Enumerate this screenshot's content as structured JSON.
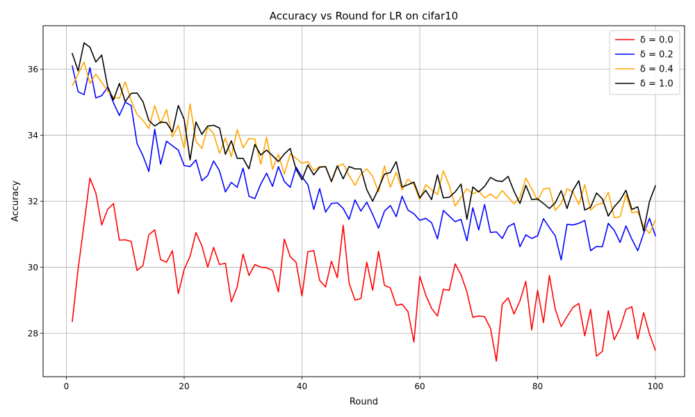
{
  "chart_data": {
    "type": "line",
    "title": "Accuracy vs Round for LR on cifar10",
    "xlabel": "Round",
    "ylabel": "Accuracy",
    "xlim": [
      -3.95,
      104.95
    ],
    "ylim": [
      26.68,
      37.32
    ],
    "xticks": [
      0,
      20,
      40,
      60,
      80,
      100
    ],
    "yticks": [
      28,
      30,
      32,
      34,
      36
    ],
    "grid": true,
    "legend_position": "top-right",
    "x": [
      1,
      2,
      3,
      4,
      5,
      6,
      7,
      8,
      9,
      10,
      11,
      12,
      13,
      14,
      15,
      16,
      17,
      18,
      19,
      20,
      21,
      22,
      23,
      24,
      25,
      26,
      27,
      28,
      29,
      30,
      31,
      32,
      33,
      34,
      35,
      36,
      37,
      38,
      39,
      40,
      41,
      42,
      43,
      44,
      45,
      46,
      47,
      48,
      49,
      50,
      51,
      52,
      53,
      54,
      55,
      56,
      57,
      58,
      59,
      60,
      61,
      62,
      63,
      64,
      65,
      66,
      67,
      68,
      69,
      70,
      71,
      72,
      73,
      74,
      75,
      76,
      77,
      78,
      79,
      80,
      81,
      82,
      83,
      84,
      85,
      86,
      87,
      88,
      89,
      90,
      91,
      92,
      93,
      94,
      95,
      96,
      97,
      98,
      99,
      100
    ],
    "series": [
      {
        "name": "δ = 0.0",
        "color": "#ff0000",
        "values": [
          28.35,
          29.95,
          31.3,
          32.7,
          32.25,
          31.28,
          31.75,
          31.93,
          30.82,
          30.83,
          30.78,
          29.9,
          30.05,
          30.98,
          31.13,
          30.23,
          30.15,
          30.5,
          29.2,
          29.93,
          30.33,
          31.05,
          30.65,
          30.0,
          30.6,
          30.08,
          30.12,
          28.95,
          29.4,
          30.4,
          29.75,
          30.08,
          30.0,
          29.98,
          29.9,
          29.25,
          30.85,
          30.32,
          30.15,
          29.13,
          30.47,
          30.5,
          29.6,
          29.4,
          30.18,
          29.68,
          31.27,
          29.52,
          29.0,
          29.05,
          30.15,
          29.3,
          30.48,
          29.45,
          29.37,
          28.84,
          28.88,
          28.65,
          27.73,
          29.72,
          29.16,
          28.75,
          28.52,
          29.33,
          29.3,
          30.1,
          29.77,
          29.25,
          28.48,
          28.52,
          28.5,
          28.15,
          27.15,
          28.88,
          29.07,
          28.58,
          28.98,
          29.57,
          28.1,
          29.3,
          28.32,
          29.75,
          28.72,
          28.2,
          28.5,
          28.78,
          28.9,
          27.92,
          28.72,
          27.3,
          27.45,
          28.68,
          27.8,
          28.15,
          28.72,
          28.8,
          27.82,
          28.62,
          27.97,
          27.48
        ]
      },
      {
        "name": "δ = 0.2",
        "color": "#0000ff",
        "values": [
          36.1,
          35.32,
          35.23,
          36.05,
          35.13,
          35.2,
          35.45,
          34.98,
          34.6,
          35.0,
          34.9,
          33.75,
          33.38,
          32.9,
          34.18,
          33.12,
          33.82,
          33.68,
          33.55,
          33.08,
          33.05,
          33.25,
          32.62,
          32.78,
          33.22,
          32.92,
          32.28,
          32.57,
          32.42,
          33.0,
          32.15,
          32.08,
          32.52,
          32.85,
          32.45,
          33.05,
          32.6,
          32.42,
          33.03,
          32.74,
          32.5,
          31.75,
          32.38,
          31.67,
          31.93,
          31.95,
          31.78,
          31.45,
          32.04,
          31.7,
          31.97,
          31.6,
          31.18,
          31.7,
          31.87,
          31.53,
          32.15,
          31.73,
          31.62,
          31.42,
          31.48,
          31.35,
          30.86,
          31.72,
          31.55,
          31.38,
          31.45,
          30.8,
          31.8,
          31.13,
          31.9,
          31.05,
          31.07,
          30.87,
          31.23,
          31.33,
          30.62,
          30.98,
          30.87,
          30.95,
          31.47,
          31.2,
          30.95,
          30.22,
          31.3,
          31.28,
          31.33,
          31.42,
          30.5,
          30.63,
          30.62,
          31.33,
          31.12,
          30.75,
          31.25,
          30.85,
          30.5,
          31.02,
          31.48,
          30.95
        ]
      },
      {
        "name": "δ = 0.4",
        "color": "#ffa500",
        "values": [
          35.5,
          35.85,
          36.22,
          35.57,
          35.85,
          35.6,
          35.35,
          35.15,
          35.12,
          35.62,
          35.05,
          34.63,
          34.45,
          34.2,
          34.9,
          34.35,
          34.78,
          33.95,
          34.3,
          33.6,
          34.95,
          33.82,
          33.6,
          34.25,
          34.05,
          33.45,
          33.92,
          33.35,
          34.17,
          33.62,
          33.9,
          33.88,
          33.12,
          33.94,
          32.97,
          33.42,
          32.82,
          33.43,
          33.3,
          33.15,
          33.2,
          32.93,
          33.05,
          33.05,
          32.58,
          33.05,
          33.13,
          32.78,
          32.48,
          32.82,
          32.98,
          32.75,
          32.28,
          33.07,
          32.42,
          32.88,
          32.34,
          32.67,
          32.5,
          32.05,
          32.5,
          32.35,
          32.2,
          32.92,
          32.48,
          31.85,
          32.12,
          32.38,
          32.22,
          32.32,
          32.1,
          32.22,
          32.08,
          32.32,
          32.12,
          31.92,
          32.12,
          32.7,
          32.38,
          32.02,
          32.37,
          32.4,
          31.72,
          31.93,
          32.38,
          32.28,
          31.9,
          32.5,
          31.73,
          31.9,
          31.93,
          32.27,
          31.5,
          31.53,
          32.2,
          31.65,
          31.68,
          31.25,
          31.02,
          31.43
        ]
      },
      {
        "name": "δ = 1.0",
        "color": "#000000",
        "values": [
          36.48,
          35.95,
          36.8,
          36.67,
          36.22,
          36.43,
          35.48,
          35.07,
          35.57,
          35.02,
          35.27,
          35.28,
          35.02,
          34.45,
          34.28,
          34.4,
          34.38,
          34.1,
          34.9,
          34.48,
          33.25,
          34.4,
          34.03,
          34.28,
          34.3,
          34.22,
          33.42,
          33.83,
          33.3,
          33.3,
          32.98,
          33.72,
          33.4,
          33.55,
          33.38,
          33.2,
          33.43,
          33.6,
          32.97,
          32.65,
          33.1,
          32.8,
          33.03,
          33.05,
          32.6,
          33.07,
          32.68,
          33.05,
          32.98,
          32.98,
          32.35,
          32.0,
          32.38,
          32.82,
          32.87,
          33.2,
          32.43,
          32.5,
          32.58,
          32.1,
          32.33,
          32.05,
          32.8,
          32.1,
          32.12,
          32.28,
          32.52,
          31.45,
          32.43,
          32.28,
          32.45,
          32.72,
          32.62,
          32.6,
          32.75,
          32.3,
          31.93,
          32.48,
          32.05,
          32.07,
          31.93,
          31.78,
          31.95,
          32.32,
          31.78,
          32.33,
          32.62,
          31.73,
          31.82,
          32.25,
          32.07,
          31.55,
          31.83,
          32.03,
          32.33,
          31.75,
          31.83,
          31.1,
          32.0,
          32.47
        ]
      }
    ]
  }
}
